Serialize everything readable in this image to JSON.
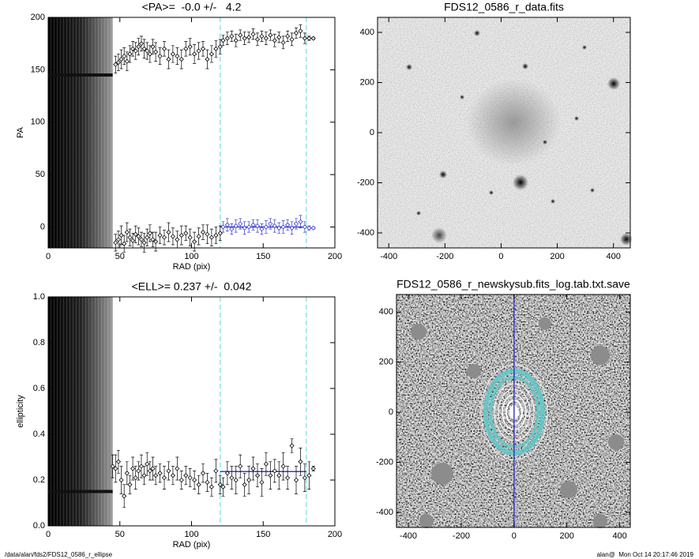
{
  "footer_left": "/data/alan/fds2/FDS12_0586_r_ellipse",
  "footer_right": "alan@  Mon Oct 14 20:17:46 2019",
  "chart_data": [
    {
      "type": "scatter",
      "title": "<PA>=  -0.0 +/-   4.2",
      "xlabel": "RAD (pix)",
      "ylabel": "PA",
      "xlim": [
        0,
        200
      ],
      "ylim": [
        -20,
        200
      ],
      "xticks": [
        0,
        50,
        100,
        150,
        200
      ],
      "yticks": [
        0,
        50,
        100,
        150,
        200
      ],
      "band_x": [
        0,
        45
      ],
      "inner_line": {
        "value": 145,
        "x": [
          0,
          45
        ]
      },
      "fit": {
        "value": 0,
        "x": [
          120,
          180
        ],
        "color": "#3a3ad0"
      },
      "vlines": [
        120,
        180
      ],
      "vline_color": "#8fe3e8",
      "series": [
        {
          "color": "#000000",
          "x": [
            47,
            49,
            51,
            53,
            55,
            57,
            59,
            61,
            63,
            65,
            67,
            69,
            71,
            73,
            75,
            78,
            81,
            84,
            87,
            90,
            93,
            96,
            99,
            102,
            105,
            108,
            111,
            114,
            117,
            120
          ],
          "values": [
            155,
            157,
            160,
            163,
            158,
            165,
            170,
            168,
            172,
            175,
            170,
            168,
            165,
            172,
            167,
            163,
            170,
            160,
            165,
            163,
            160,
            170,
            172,
            165,
            168,
            170,
            160,
            165,
            170,
            172
          ],
          "errors": [
            8,
            8,
            9,
            8,
            9,
            8,
            7,
            8,
            8,
            7,
            9,
            8,
            8,
            7,
            9,
            8,
            7,
            9,
            8,
            8,
            9,
            7,
            8,
            9,
            8,
            7,
            9,
            8,
            8,
            7
          ]
        },
        {
          "color": "#000000",
          "x": [
            122,
            125,
            128,
            131,
            134,
            137,
            140,
            143,
            146,
            149,
            152,
            155,
            158,
            161,
            164,
            167,
            170,
            173,
            176,
            179,
            182,
            185
          ],
          "values": [
            178,
            180,
            182,
            178,
            183,
            180,
            181,
            184,
            179,
            182,
            180,
            183,
            178,
            181,
            176,
            182,
            179,
            185,
            187,
            180,
            180,
            180
          ],
          "errors": [
            5,
            6,
            5,
            6,
            5,
            6,
            5,
            5,
            6,
            5,
            6,
            5,
            6,
            5,
            6,
            5,
            6,
            5,
            6,
            5,
            2,
            1
          ]
        },
        {
          "color": "#000000",
          "x": [
            47,
            49,
            51,
            53,
            55,
            57,
            59,
            61,
            63,
            65,
            67,
            69,
            71,
            73,
            75,
            78,
            81,
            84,
            87,
            90,
            93,
            96,
            99,
            102,
            105,
            108,
            111,
            114,
            117,
            120
          ],
          "values": [
            -15,
            -12,
            -8,
            -16,
            -5,
            -10,
            -13,
            -7,
            -9,
            -12,
            -15,
            -10,
            -6,
            -12,
            -14,
            -8,
            -10,
            -5,
            -9,
            -12,
            -8,
            -6,
            -10,
            -14,
            -9,
            -5,
            -7,
            -10,
            -8,
            -6
          ],
          "errors": [
            8,
            8,
            9,
            8,
            9,
            8,
            7,
            8,
            8,
            7,
            9,
            8,
            8,
            7,
            9,
            8,
            7,
            9,
            8,
            8,
            9,
            7,
            8,
            9,
            8,
            7,
            9,
            8,
            8,
            7
          ]
        },
        {
          "color": "#3a3ad0",
          "x": [
            122,
            125,
            128,
            131,
            134,
            137,
            140,
            143,
            146,
            149,
            152,
            155,
            158,
            161,
            164,
            167,
            170,
            173,
            176,
            179,
            182,
            185
          ],
          "values": [
            0,
            2,
            -2,
            1,
            3,
            -1,
            0,
            2,
            1,
            -2,
            0,
            3,
            1,
            -1,
            0,
            2,
            -1,
            3,
            5,
            0,
            -1,
            -1
          ],
          "errors": [
            5,
            6,
            5,
            6,
            5,
            6,
            5,
            5,
            6,
            5,
            6,
            5,
            6,
            5,
            6,
            5,
            6,
            5,
            6,
            5,
            2,
            1
          ]
        }
      ]
    },
    {
      "type": "image",
      "title": "FDS12_0586_r_data.fits",
      "variant": "data",
      "xlim": [
        -440,
        460
      ],
      "ylim": [
        -460,
        460
      ],
      "xticks": [
        -400,
        -200,
        0,
        200,
        400
      ],
      "yticks": [
        -400,
        -200,
        0,
        200,
        400
      ]
    },
    {
      "type": "scatter",
      "title": "<ELL>= 0.237 +/-  0.042",
      "xlabel": "RAD (pix)",
      "ylabel": "ellipticity",
      "xlim": [
        0,
        200
      ],
      "ylim": [
        0,
        1
      ],
      "xticks": [
        0,
        50,
        100,
        150,
        200
      ],
      "yticks": [
        {
          "value": 0,
          "label": "0.0"
        },
        0.2,
        0.4,
        0.6,
        0.8,
        {
          "value": 1,
          "label": "1.0"
        }
      ],
      "band_x": [
        0,
        45
      ],
      "inner_line": {
        "value": 0.15,
        "x": [
          0,
          45
        ]
      },
      "fit": {
        "value": 0.237,
        "x": [
          120,
          180
        ],
        "color": "#3a3ad0"
      },
      "vlines": [
        120,
        180
      ],
      "vline_color": "#8fe3e8",
      "series": [
        {
          "color": "#000000",
          "x": [
            45,
            47,
            49,
            51,
            53,
            55,
            57,
            59,
            61,
            63,
            65,
            67,
            69,
            71,
            73,
            75,
            78,
            81,
            84,
            87,
            90,
            93,
            96,
            99,
            102,
            105,
            108,
            111,
            114,
            117,
            120,
            122,
            125,
            128,
            131,
            134,
            137,
            140,
            143,
            146,
            149,
            152,
            155,
            158,
            161,
            164,
            167,
            170,
            173,
            176,
            179,
            182,
            185
          ],
          "values": [
            0.26,
            0.25,
            0.28,
            0.2,
            0.13,
            0.23,
            0.18,
            0.25,
            0.21,
            0.24,
            0.26,
            0.22,
            0.27,
            0.24,
            0.25,
            0.22,
            0.23,
            0.21,
            0.24,
            0.22,
            0.25,
            0.2,
            0.22,
            0.21,
            0.2,
            0.18,
            0.23,
            0.19,
            0.17,
            0.24,
            0.18,
            0.17,
            0.23,
            0.21,
            0.2,
            0.26,
            0.18,
            0.2,
            0.25,
            0.22,
            0.19,
            0.27,
            0.22,
            0.24,
            0.22,
            0.26,
            0.21,
            0.35,
            0.2,
            0.28,
            0.21,
            0.22,
            0.25
          ],
          "errors": [
            0.05,
            0.06,
            0.05,
            0.06,
            0.05,
            0.05,
            0.04,
            0.05,
            0.05,
            0.04,
            0.05,
            0.04,
            0.05,
            0.04,
            0.05,
            0.04,
            0.04,
            0.05,
            0.04,
            0.04,
            0.05,
            0.04,
            0.04,
            0.04,
            0.04,
            0.04,
            0.04,
            0.04,
            0.04,
            0.05,
            0.04,
            0.04,
            0.05,
            0.05,
            0.06,
            0.05,
            0.05,
            0.06,
            0.05,
            0.05,
            0.06,
            0.05,
            0.06,
            0.05,
            0.06,
            0.06,
            0.05,
            0.03,
            0.06,
            0.06,
            0.06,
            0.06,
            0.01
          ]
        }
      ]
    },
    {
      "type": "image",
      "title": "FDS12_0586_r_newskysub.fits_log.tab.txt.save",
      "variant": "model",
      "xlim": [
        -445,
        440
      ],
      "ylim": [
        -460,
        470
      ],
      "xticks": [
        -400,
        -200,
        0,
        200,
        400
      ],
      "yticks": [
        -400,
        -200,
        0,
        200,
        400
      ],
      "vlines": [
        0
      ],
      "vline_color": "#3a3ad0"
    }
  ]
}
